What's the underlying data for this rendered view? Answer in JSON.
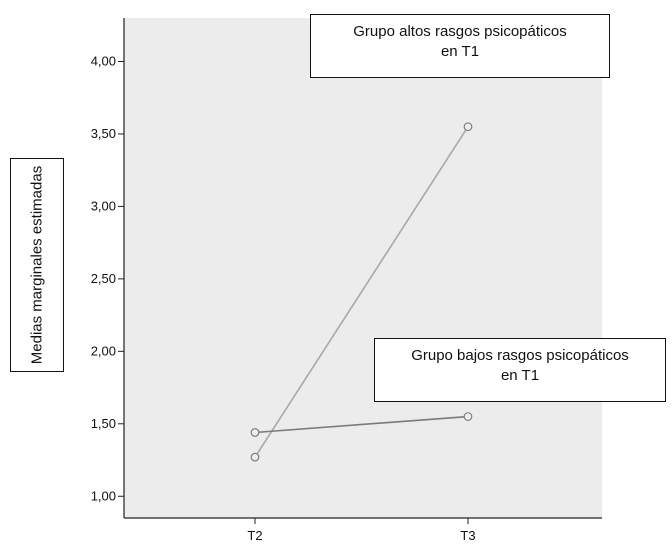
{
  "chart_data": {
    "type": "line",
    "title": "",
    "xlabel": "",
    "ylabel": "Medias marginales estimadas",
    "categories": [
      "T2",
      "T3"
    ],
    "ylim": [
      0.85,
      4.3
    ],
    "yticks": [
      "1,00",
      "1,50",
      "2,00",
      "2,50",
      "3,00",
      "3,50",
      "4,00"
    ],
    "ytick_values": [
      1.0,
      1.5,
      2.0,
      2.5,
      3.0,
      3.5,
      4.0
    ],
    "grid": false,
    "series": [
      {
        "name": "Grupo altos rasgos psicopáticos en T1",
        "values": [
          1.27,
          3.55
        ],
        "color": "#a8a8a8"
      },
      {
        "name": "Grupo bajos rasgos psicopáticos en T1",
        "values": [
          1.44,
          1.55
        ],
        "color": "#7a7a7a"
      }
    ],
    "annotations": {
      "high": {
        "line1": "Grupo altos rasgos psicopáticos",
        "line2": "en T1"
      },
      "low": {
        "line1": "Grupo bajos rasgos psicopáticos",
        "line2": "en T1"
      }
    },
    "colors": {
      "plot_background": "#ececec",
      "axis": "#222222"
    }
  }
}
